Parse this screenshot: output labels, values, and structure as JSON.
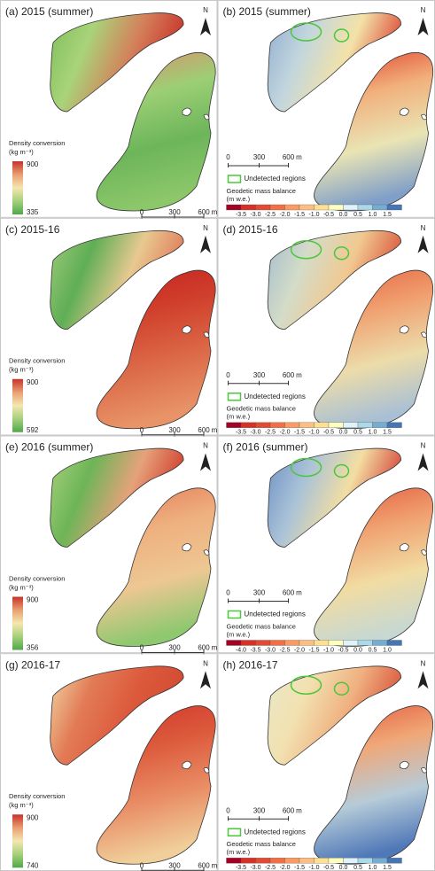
{
  "panels": [
    {
      "title": "(a) 2015 (summer)",
      "north": "N",
      "scale": [
        "0",
        "300",
        "600",
        "m"
      ],
      "legend": {
        "title": "Density conversion",
        "unit": "(kg m⁻³)",
        "max": "900",
        "min": "335"
      }
    },
    {
      "title": "(b) 2015 (summer)",
      "north": "N",
      "scale": [
        "0",
        "300",
        "600",
        "m"
      ],
      "legend": {
        "region": "Undetected regions",
        "title": "Geodetic mass balance",
        "unit": "(m w.e.)",
        "ticks": [
          "-3.5",
          "-3.0",
          "-2.5",
          "-2.0",
          "-1.5",
          "-1.0",
          "-0.5",
          "0.0",
          "0.5",
          "1.0",
          "1.5"
        ]
      }
    },
    {
      "title": "(c) 2015-16",
      "north": "N",
      "scale": [
        "0",
        "300",
        "600",
        "m"
      ],
      "legend": {
        "title": "Density conversion",
        "unit": "(kg m⁻³)",
        "max": "900",
        "min": "592"
      }
    },
    {
      "title": "(d) 2015-16",
      "north": "N",
      "scale": [
        "0",
        "300",
        "600",
        "m"
      ],
      "legend": {
        "region": "Undetected regions",
        "title": "Geodetic mass balance",
        "unit": "(m w.e.)",
        "ticks": [
          "-3.5",
          "-3.0",
          "-2.5",
          "-2.0",
          "-1.5",
          "-1.0",
          "-0.5",
          "0.0",
          "0.5",
          "1.0",
          "1.5"
        ]
      }
    },
    {
      "title": "(e) 2016 (summer)",
      "north": "N",
      "scale": [
        "0",
        "300",
        "600",
        "m"
      ],
      "legend": {
        "title": "Density conversion",
        "unit": "(kg m⁻³)",
        "max": "900",
        "min": "356"
      }
    },
    {
      "title": "(f) 2016 (summer)",
      "north": "N",
      "scale": [
        "0",
        "300",
        "600",
        "m"
      ],
      "legend": {
        "region": "Undetected regions",
        "title": "Geodetic mass balance",
        "unit": "(m w.e.)",
        "ticks": [
          "-4.0",
          "-3.5",
          "-3.0",
          "-2.5",
          "-2.0",
          "-1.5",
          "-1.0",
          "-0.5",
          "0.0",
          "0.5",
          "1.0"
        ]
      }
    },
    {
      "title": "(g) 2016-17",
      "north": "N",
      "scale": [
        "0",
        "300",
        "600",
        "m"
      ],
      "legend": {
        "title": "Density conversion",
        "unit": "(kg m⁻³)",
        "max": "900",
        "min": "740"
      }
    },
    {
      "title": "(h) 2016-17",
      "north": "N",
      "scale": [
        "0",
        "300",
        "600",
        "m"
      ],
      "legend": {
        "region": "Undetected regions",
        "title": "Geodetic mass balance",
        "unit": "(m w.e.)",
        "ticks": [
          "-3.5",
          "-3.0",
          "-2.5",
          "-2.0",
          "-1.5",
          "-1.0",
          "-0.5",
          "0.0",
          "0.5",
          "1.0",
          "1.5"
        ]
      }
    }
  ]
}
